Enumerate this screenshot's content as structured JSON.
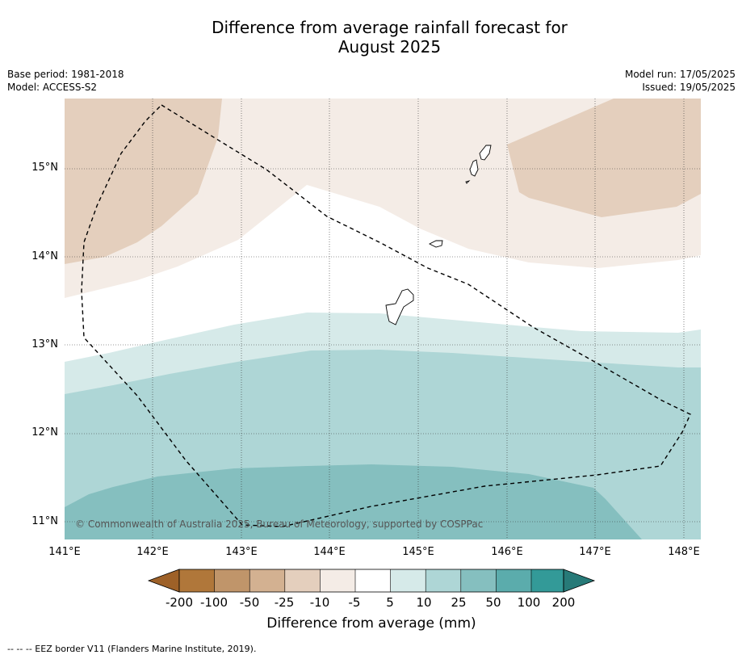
{
  "title_line1": "Difference from average rainfall forecast for",
  "title_line2": "August 2025",
  "base_period": "Base period: 1981-2018",
  "model": "Model: ACCESS-S2",
  "model_run": "Model run: 17/05/2025",
  "issued": "Issued: 19/05/2025",
  "lat_labels": [
    "15°N",
    "14°N",
    "13°N",
    "12°N",
    "11°N"
  ],
  "lon_labels": [
    "141°E",
    "142°E",
    "143°E",
    "144°E",
    "145°E",
    "146°E",
    "147°E",
    "148°E"
  ],
  "copyright": "© Commonwealth of Australia 2025, Bureau of Meteorology, supported by COSPPac",
  "colorbar": {
    "ticks": [
      "-200",
      "-100",
      "-50",
      "-25",
      "-10",
      "-5",
      "5",
      "10",
      "25",
      "50",
      "100",
      "200"
    ],
    "colors": [
      "#9e6128",
      "#b0773a",
      "#c0956a",
      "#d3b191",
      "#e4cfbd",
      "#f4ece6",
      "#ffffff",
      "#d6eae9",
      "#aed6d6",
      "#85bfbf",
      "#5bacac",
      "#339a98",
      "#277a78"
    ],
    "title": "Difference from average (mm)"
  },
  "footer": "--  --  -- EEZ border V11 (Flanders Marine Institute, 2019)."
}
